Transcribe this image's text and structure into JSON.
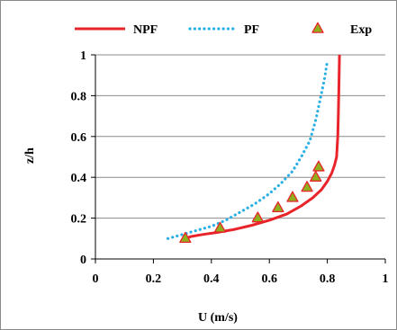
{
  "chart_data": {
    "type": "line",
    "xlabel": "U (m/s)",
    "ylabel": "z/h",
    "xlim": [
      0,
      1
    ],
    "ylim": [
      0,
      1
    ],
    "x_ticks": [
      "0",
      "0.2",
      "0.4",
      "0.6",
      "0.8",
      "1"
    ],
    "y_ticks": [
      "0",
      "0.2",
      "0.4",
      "0.6",
      "0.8",
      "1"
    ],
    "grid": "horizontal",
    "legend_position": "top",
    "series": [
      {
        "name": "NPF",
        "kind": "line",
        "style": "solid",
        "color": "#e8242a",
        "x": [
          0.31,
          0.33,
          0.37,
          0.42,
          0.48,
          0.54,
          0.6,
          0.66,
          0.71,
          0.75,
          0.78,
          0.8,
          0.815,
          0.825,
          0.832,
          0.836,
          0.838,
          0.84,
          0.842
        ],
        "y": [
          0.1,
          0.11,
          0.12,
          0.13,
          0.145,
          0.165,
          0.19,
          0.22,
          0.26,
          0.3,
          0.34,
          0.38,
          0.42,
          0.46,
          0.5,
          0.6,
          0.7,
          0.85,
          1.0
        ]
      },
      {
        "name": "PF",
        "kind": "line",
        "style": "dotted",
        "color": "#2ab0e4",
        "x": [
          0.25,
          0.3,
          0.35,
          0.4,
          0.45,
          0.5,
          0.55,
          0.6,
          0.64,
          0.68,
          0.71,
          0.74,
          0.76,
          0.775,
          0.79,
          0.8
        ],
        "y": [
          0.1,
          0.12,
          0.14,
          0.16,
          0.19,
          0.23,
          0.27,
          0.32,
          0.37,
          0.43,
          0.5,
          0.58,
          0.68,
          0.78,
          0.88,
          0.97
        ]
      },
      {
        "name": "Exp",
        "kind": "scatter",
        "marker": "triangle",
        "fill": "#8fb01d",
        "edge": "#e8242a",
        "x": [
          0.31,
          0.43,
          0.56,
          0.63,
          0.68,
          0.73,
          0.76,
          0.77
        ],
        "y": [
          0.1,
          0.15,
          0.2,
          0.25,
          0.3,
          0.35,
          0.4,
          0.45
        ]
      }
    ]
  }
}
